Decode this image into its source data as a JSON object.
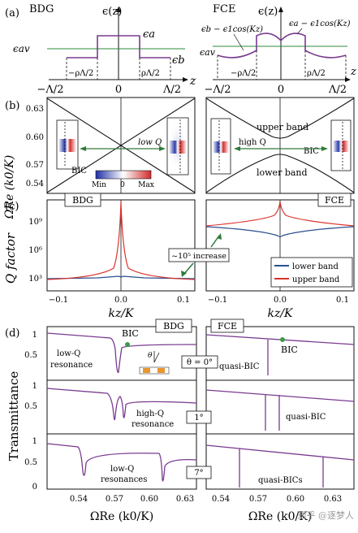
{
  "panel_a": {
    "label": "(a)",
    "left": {
      "tag": "BDG",
      "fn": "ϵ(z)",
      "ea": "ϵa",
      "eb": "ϵb",
      "eav": "ϵav",
      "t_m": "−Λ/2",
      "t_0": "0",
      "t_p": "Λ/2",
      "axis": "z",
      "rho_m": "−ρΛ/2",
      "rho_p": "ρΛ/2"
    },
    "right": {
      "tag": "FCE",
      "fn": "ϵ(z)",
      "eb_formula": "ϵb − ϵ1cos(Kz)",
      "ea_formula": "ϵa − ϵ1cos(Kz)",
      "eav": "ϵav",
      "t_m": "−Λ/2",
      "t_0": "0",
      "t_p": "Λ/2",
      "axis": "z",
      "rho_m": "−ρΛ/2",
      "rho_p": "ρΛ/2"
    }
  },
  "panel_b": {
    "label": "(b)",
    "ylabel": "ΩRe (k0/K)",
    "yticks": [
      "0.63",
      "0.60",
      "0.57",
      "0.54"
    ],
    "left": {
      "bic": "BIC",
      "lowq": "low Q",
      "cb_min": "Min",
      "cb_zero": "0",
      "cb_max": "Max"
    },
    "right": {
      "upper": "upper band",
      "lower": "lower band",
      "highq": "high Q",
      "bic": "BIC"
    }
  },
  "panel_c": {
    "label": "(c)",
    "ylabel": "Q factor",
    "tag_left": "BDG",
    "tag_right": "FCE",
    "yticks": [
      "10⁹",
      "10⁶",
      "10³"
    ],
    "xticks": [
      "−0.1",
      "0.0",
      "0.1"
    ],
    "xlabel": "kz/K",
    "annotation": "~10⁵ increase",
    "legend": {
      "lower": "lower band",
      "upper": "upper band"
    },
    "colors": {
      "lower": "#2a4f8f",
      "upper": "#d9332b"
    }
  },
  "panel_d": {
    "label": "(d)",
    "ylabel": "Transmittance",
    "tag_left": "BDG",
    "tag_right": "FCE",
    "yticks": [
      "1",
      "0.5",
      "0"
    ],
    "xticks": [
      "0.54",
      "0.57",
      "0.60",
      "0.63"
    ],
    "xlabel": "ΩRe (k0/K)",
    "angles": [
      "θ = 0°",
      "1°",
      "7°"
    ],
    "theta": "θ",
    "r1": {
      "bic": "BIC",
      "lowq": "low-Q",
      "res": "resonance",
      "quasi": "quasi-BIC",
      "bic_r": "BIC"
    },
    "r2": {
      "highq": "high-Q",
      "res": "resonance",
      "quasi": "quasi-BIC"
    },
    "r3": {
      "lowq": "low-Q",
      "res": "resonances",
      "quasi": "quasi-BICs"
    },
    "curve_color": "#7a3b8f"
  },
  "watermark": "知乎 @逐梦人",
  "chart_data": [
    {
      "type": "line",
      "name_ref": "panel_b_band_diagram",
      "x_range": [
        -0.12,
        0.12
      ],
      "ylim": [
        0.53,
        0.645
      ],
      "series": [
        {
          "name": "upper band",
          "x": [
            -0.12,
            0,
            0.12
          ],
          "values": [
            0.64,
            0.588,
            0.64
          ]
        },
        {
          "name": "lower band",
          "x": [
            -0.12,
            0,
            0.12
          ],
          "values": [
            0.535,
            0.583,
            0.535
          ]
        }
      ]
    },
    {
      "type": "line",
      "name_ref": "panel_c_q_factor",
      "log_y": true,
      "x_range": [
        -0.12,
        0.12
      ],
      "series": [
        {
          "name": "lower band",
          "x": [
            -0.12,
            0,
            0.12
          ],
          "values": [
            500,
            500,
            500
          ]
        },
        {
          "name": "upper band",
          "x": [
            -0.12,
            -0.05,
            -0.01,
            0,
            0.01,
            0.05,
            0.12
          ],
          "values": [
            500,
            600,
            5000,
            10000000000.0,
            5000,
            600,
            500
          ]
        }
      ]
    },
    {
      "type": "line",
      "name_ref": "panel_d_transmittance",
      "x_range": [
        0.525,
        0.645
      ],
      "ylim": [
        0,
        1.1
      ],
      "series": [
        {
          "name": "BDG 0°",
          "resonances": [
            0.576
          ]
        },
        {
          "name": "BDG 1°",
          "resonances": [
            0.576,
            0.58
          ]
        },
        {
          "name": "BDG 7°",
          "resonances": [
            0.545,
            0.62
          ]
        },
        {
          "name": "FCE 0°",
          "resonances": [
            0.575
          ]
        },
        {
          "name": "FCE 1°",
          "resonances": [
            0.573,
            0.588
          ]
        },
        {
          "name": "FCE 7°",
          "resonances": [
            0.552,
            0.624
          ]
        }
      ]
    }
  ]
}
